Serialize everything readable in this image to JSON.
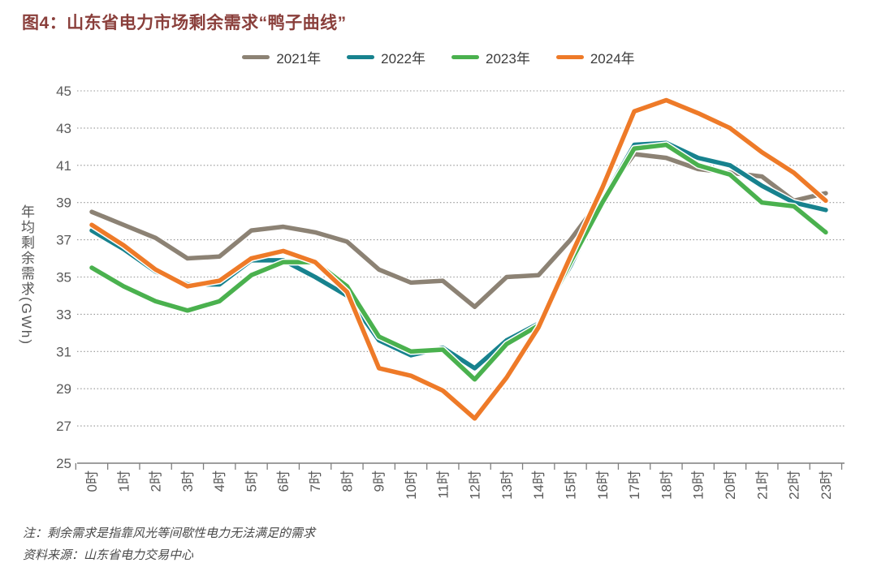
{
  "figure": {
    "title": "图4：山东省电力市场剩余需求“鸭子曲线”"
  },
  "axis": {
    "y_title": "年均剩余需求(GWh)"
  },
  "notes": {
    "note": "注：剩余需求是指靠风光等间歇性电力无法满足的需求",
    "source": "资料来源：山东省电力交易中心"
  },
  "chart_data": {
    "type": "line",
    "title": "图4：山东省电力市场剩余需求“鸭子曲线”",
    "ylabel": "年均剩余需求(GWh)",
    "ylim": [
      25,
      45
    ],
    "y_ticks": [
      25,
      27,
      29,
      31,
      33,
      35,
      37,
      39,
      41,
      43,
      45
    ],
    "grid": "horizontal-dotted",
    "legend_position": "top",
    "x_categories": [
      "0时",
      "1时",
      "2时",
      "3时",
      "4时",
      "5时",
      "6时",
      "7时",
      "8时",
      "9时",
      "10时",
      "11时",
      "12时",
      "13时",
      "14时",
      "15时",
      "16时",
      "17时",
      "18时",
      "19时",
      "20时",
      "21时",
      "22时",
      "23时"
    ],
    "series": [
      {
        "name": "2021年",
        "color": "#8C8274",
        "values": [
          38.5,
          37.8,
          37.1,
          36.0,
          36.1,
          37.5,
          37.7,
          37.4,
          36.9,
          35.4,
          34.7,
          34.8,
          33.4,
          35.0,
          35.1,
          37.0,
          39.3,
          41.6,
          41.4,
          40.8,
          40.6,
          40.4,
          39.1,
          39.5
        ]
      },
      {
        "name": "2022年",
        "color": "#17828E",
        "values": [
          37.5,
          36.5,
          35.3,
          34.6,
          34.6,
          35.9,
          35.9,
          35.0,
          34.0,
          31.6,
          30.8,
          31.2,
          30.1,
          31.6,
          32.5,
          35.6,
          39.1,
          42.1,
          42.2,
          41.4,
          41.0,
          39.9,
          39.0,
          38.6
        ]
      },
      {
        "name": "2023年",
        "color": "#4AB14E",
        "values": [
          35.5,
          34.5,
          33.7,
          33.2,
          33.7,
          35.1,
          35.8,
          35.8,
          34.5,
          31.8,
          31.0,
          31.1,
          29.5,
          31.4,
          32.4,
          35.8,
          39.0,
          41.9,
          42.1,
          41.0,
          40.5,
          39.0,
          38.8,
          37.4
        ]
      },
      {
        "name": "2024年",
        "color": "#EE7A28",
        "values": [
          37.8,
          36.7,
          35.4,
          34.5,
          34.8,
          36.0,
          36.4,
          35.8,
          34.2,
          30.1,
          29.7,
          28.9,
          27.4,
          29.6,
          32.3,
          36.1,
          39.8,
          43.9,
          44.5,
          43.8,
          43.0,
          41.7,
          40.6,
          39.1
        ]
      }
    ]
  }
}
